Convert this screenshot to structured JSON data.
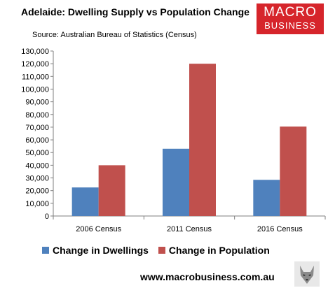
{
  "header": {
    "title": "Adelaide: Dwelling Supply vs Population Change",
    "subtitle": "Source: Australian Bureau of Statistics (Census)"
  },
  "logo": {
    "line1": "MACRO",
    "line2": "BUSINESS",
    "bg_color": "#d6252b",
    "text_color": "#ffffff"
  },
  "footer": {
    "url": "www.macrobusiness.com.au",
    "icon": "wolf-icon"
  },
  "chart_data": {
    "type": "bar",
    "title": "Adelaide: Dwelling Supply vs Population Change",
    "categories": [
      "2006 Census",
      "2011 Census",
      "2016 Census"
    ],
    "series": [
      {
        "name": "Change in Dwellings",
        "values": [
          22500,
          53000,
          28500
        ],
        "color": "#4f81bd"
      },
      {
        "name": "Change in Population",
        "values": [
          40000,
          120000,
          70500
        ],
        "color": "#c0504d"
      }
    ],
    "xlabel": "",
    "ylabel": "",
    "ylim": [
      0,
      130000
    ],
    "ytick_step": 10000,
    "yticks": [
      "0",
      "10,000",
      "20,000",
      "30,000",
      "40,000",
      "50,000",
      "60,000",
      "70,000",
      "80,000",
      "90,000",
      "100,000",
      "110,000",
      "120,000",
      "130,000"
    ],
    "grid": false,
    "legend_position": "bottom"
  }
}
